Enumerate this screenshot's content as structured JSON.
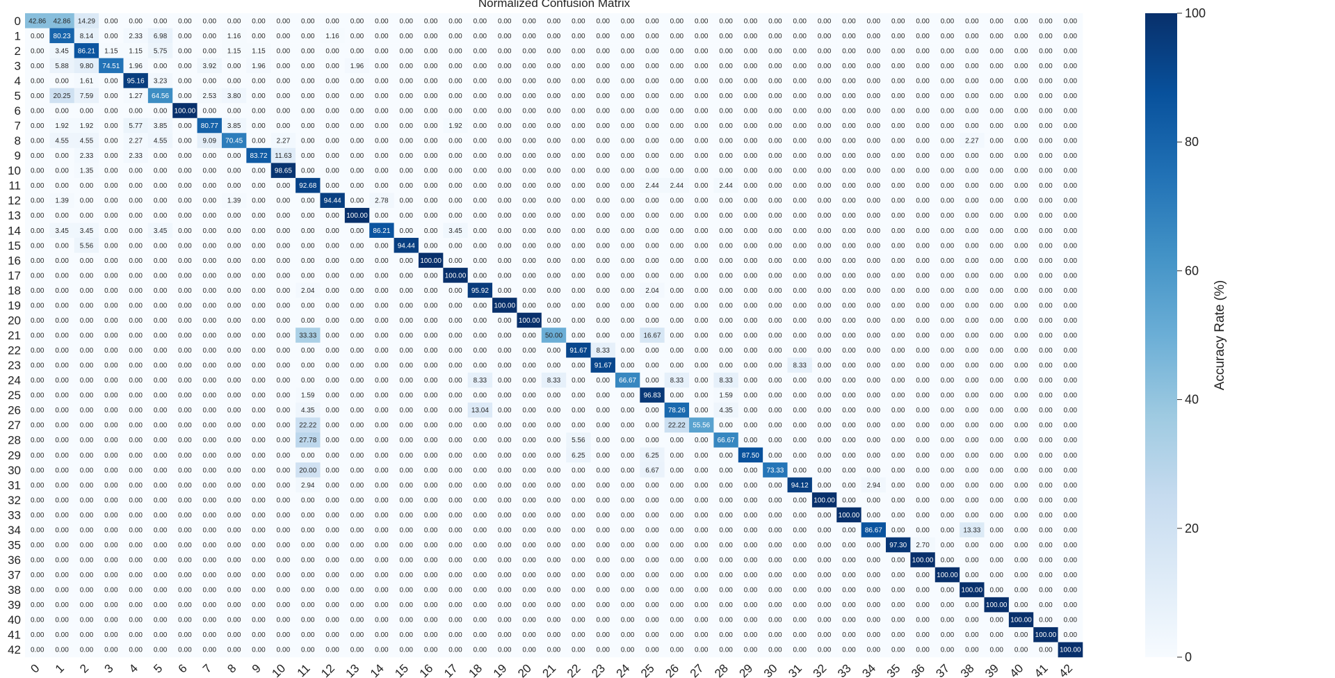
{
  "chart_data": {
    "type": "heatmap",
    "title": "Normalized Confusion Matrix",
    "row_labels": [
      "0",
      "1",
      "2",
      "3",
      "4",
      "5",
      "6",
      "7",
      "8",
      "9",
      "10",
      "11",
      "12",
      "13",
      "14",
      "15",
      "16",
      "17",
      "18",
      "19",
      "20",
      "21",
      "22",
      "23",
      "24",
      "25",
      "26",
      "27",
      "28",
      "29",
      "30",
      "31",
      "32",
      "33",
      "34",
      "35",
      "36",
      "37",
      "38",
      "39",
      "40",
      "41",
      "42"
    ],
    "col_labels": [
      "0",
      "1",
      "2",
      "3",
      "4",
      "5",
      "6",
      "7",
      "8",
      "9",
      "10",
      "11",
      "12",
      "13",
      "14",
      "15",
      "16",
      "17",
      "18",
      "19",
      "20",
      "21",
      "22",
      "23",
      "24",
      "25",
      "26",
      "27",
      "28",
      "29",
      "30",
      "31",
      "32",
      "33",
      "34",
      "35",
      "36",
      "37",
      "38",
      "39",
      "40",
      "41",
      "42"
    ],
    "value_format": "2 decimals",
    "value_range": [
      0,
      100
    ],
    "colormap": "Blues",
    "cells_nonzero": [
      [
        0,
        0,
        42.86
      ],
      [
        0,
        1,
        42.86
      ],
      [
        0,
        2,
        14.29
      ],
      [
        1,
        1,
        80.23
      ],
      [
        1,
        2,
        8.14
      ],
      [
        1,
        4,
        2.33
      ],
      [
        1,
        5,
        6.98
      ],
      [
        1,
        8,
        1.16
      ],
      [
        1,
        12,
        1.16
      ],
      [
        2,
        1,
        3.45
      ],
      [
        2,
        2,
        86.21
      ],
      [
        2,
        3,
        1.15
      ],
      [
        2,
        4,
        1.15
      ],
      [
        2,
        5,
        5.75
      ],
      [
        2,
        8,
        1.15
      ],
      [
        2,
        9,
        1.15
      ],
      [
        3,
        1,
        5.88
      ],
      [
        3,
        2,
        9.8
      ],
      [
        3,
        3,
        74.51
      ],
      [
        3,
        4,
        1.96
      ],
      [
        3,
        7,
        3.92
      ],
      [
        3,
        9,
        1.96
      ],
      [
        3,
        13,
        1.96
      ],
      [
        4,
        2,
        1.61
      ],
      [
        4,
        4,
        95.16
      ],
      [
        4,
        5,
        3.23
      ],
      [
        5,
        1,
        20.25
      ],
      [
        5,
        2,
        7.59
      ],
      [
        5,
        4,
        1.27
      ],
      [
        5,
        5,
        64.56
      ],
      [
        5,
        7,
        2.53
      ],
      [
        5,
        8,
        3.8
      ],
      [
        6,
        6,
        100.0
      ],
      [
        7,
        1,
        1.92
      ],
      [
        7,
        2,
        1.92
      ],
      [
        7,
        4,
        5.77
      ],
      [
        7,
        5,
        3.85
      ],
      [
        7,
        7,
        80.77
      ],
      [
        7,
        8,
        3.85
      ],
      [
        7,
        17,
        1.92
      ],
      [
        8,
        1,
        4.55
      ],
      [
        8,
        2,
        4.55
      ],
      [
        8,
        4,
        2.27
      ],
      [
        8,
        5,
        4.55
      ],
      [
        8,
        7,
        9.09
      ],
      [
        8,
        8,
        70.45
      ],
      [
        8,
        10,
        2.27
      ],
      [
        8,
        38,
        2.27
      ],
      [
        9,
        2,
        2.33
      ],
      [
        9,
        4,
        2.33
      ],
      [
        9,
        9,
        83.72
      ],
      [
        9,
        10,
        11.63
      ],
      [
        10,
        2,
        1.35
      ],
      [
        10,
        10,
        98.65
      ],
      [
        11,
        11,
        92.68
      ],
      [
        11,
        25,
        2.44
      ],
      [
        11,
        26,
        2.44
      ],
      [
        11,
        28,
        2.44
      ],
      [
        12,
        1,
        1.39
      ],
      [
        12,
        8,
        1.39
      ],
      [
        12,
        12,
        94.44
      ],
      [
        12,
        14,
        2.78
      ],
      [
        13,
        13,
        100.0
      ],
      [
        14,
        1,
        3.45
      ],
      [
        14,
        2,
        3.45
      ],
      [
        14,
        5,
        3.45
      ],
      [
        14,
        14,
        86.21
      ],
      [
        14,
        17,
        3.45
      ],
      [
        15,
        2,
        5.56
      ],
      [
        15,
        15,
        94.44
      ],
      [
        16,
        16,
        100.0
      ],
      [
        17,
        17,
        100.0
      ],
      [
        18,
        11,
        2.04
      ],
      [
        18,
        18,
        95.92
      ],
      [
        18,
        25,
        2.04
      ],
      [
        19,
        19,
        100.0
      ],
      [
        20,
        20,
        100.0
      ],
      [
        21,
        11,
        33.33
      ],
      [
        21,
        21,
        50.0
      ],
      [
        21,
        25,
        16.67
      ],
      [
        22,
        22,
        91.67
      ],
      [
        22,
        23,
        8.33
      ],
      [
        23,
        23,
        91.67
      ],
      [
        23,
        31,
        8.33
      ],
      [
        24,
        18,
        8.33
      ],
      [
        24,
        21,
        8.33
      ],
      [
        24,
        24,
        66.67
      ],
      [
        24,
        26,
        8.33
      ],
      [
        24,
        28,
        8.33
      ],
      [
        25,
        11,
        1.59
      ],
      [
        25,
        25,
        96.83
      ],
      [
        25,
        28,
        1.59
      ],
      [
        26,
        11,
        4.35
      ],
      [
        26,
        18,
        13.04
      ],
      [
        26,
        26,
        78.26
      ],
      [
        26,
        28,
        4.35
      ],
      [
        27,
        11,
        22.22
      ],
      [
        27,
        26,
        22.22
      ],
      [
        27,
        27,
        55.56
      ],
      [
        28,
        11,
        27.78
      ],
      [
        28,
        22,
        5.56
      ],
      [
        28,
        28,
        66.67
      ],
      [
        29,
        22,
        6.25
      ],
      [
        29,
        25,
        6.25
      ],
      [
        29,
        29,
        87.5
      ],
      [
        30,
        11,
        20.0
      ],
      [
        30,
        25,
        6.67
      ],
      [
        30,
        30,
        73.33
      ],
      [
        31,
        11,
        2.94
      ],
      [
        31,
        31,
        94.12
      ],
      [
        31,
        34,
        2.94
      ],
      [
        32,
        32,
        100.0
      ],
      [
        33,
        33,
        100.0
      ],
      [
        34,
        34,
        86.67
      ],
      [
        34,
        38,
        13.33
      ],
      [
        35,
        35,
        97.3
      ],
      [
        35,
        36,
        2.7
      ],
      [
        36,
        36,
        100.0
      ],
      [
        37,
        37,
        100.0
      ],
      [
        38,
        38,
        100.0
      ],
      [
        39,
        39,
        100.0
      ],
      [
        40,
        40,
        100.0
      ],
      [
        41,
        41,
        100.0
      ],
      [
        42,
        42,
        100.0
      ]
    ],
    "colorbar": {
      "label": "Accuracy Rate (%)",
      "ticks": [
        "0",
        "20",
        "40",
        "60",
        "80",
        "100"
      ],
      "range": [
        0,
        100
      ]
    },
    "grid": false
  }
}
